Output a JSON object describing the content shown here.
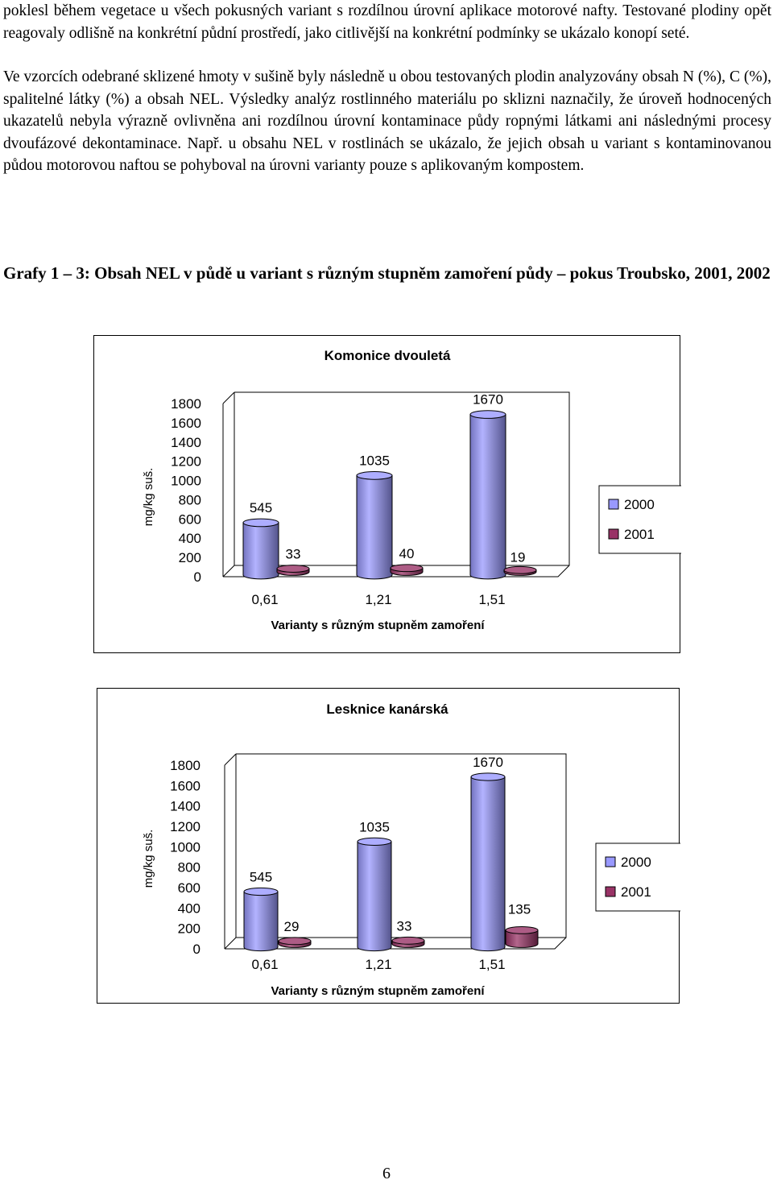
{
  "paragraphs": [
    "poklesl během vegetace u všech  pokusných variant s rozdílnou úrovní aplikace motorové nafty. Testované plodiny  opět reagovaly odlišně na konkrétní půdní prostředí, jako citlivější na konkrétní podmínky se ukázalo konopí seté.",
    "Ve vzorcích odebrané sklizené hmoty v sušině byly následně  u obou  testovaných plodin analyzovány  obsah N (%), C (%), spalitelné látky (%) a  obsah NEL. Výsledky analýz rostlinného materiálu po sklizni naznačily, že úroveň hodnocených  ukazatelů  nebyla výrazně ovlivněna ani rozdílnou úrovní kontaminace půdy ropnými látkami ani následnými procesy dvoufázové dekontaminace. Např. u  obsahu NEL v rostlinách se ukázalo, že jejich obsah u  variant s kontaminovanou půdou motorovou naftou se pohyboval na úrovni varianty pouze  s aplikovaným kompostem."
  ],
  "heading": "Grafy 1 – 3: Obsah NEL v půdě u variant s různým stupněm zamoření půdy – pokus Troubsko, 2001, 2002",
  "page_number": "6",
  "colors": {
    "series_2000": "#9999ff",
    "series_2001": "#993366"
  },
  "chart_data": [
    {
      "type": "bar",
      "title": "Komonice dvouletá",
      "xlabel": "Varianty s různým stupněm zamoření",
      "ylabel": "mg/kg suš.",
      "ylim": [
        0,
        1800
      ],
      "yticks": [
        "0",
        "200",
        "400",
        "600",
        "800",
        "1000",
        "1200",
        "1400",
        "1600",
        "1800"
      ],
      "categories": [
        "0,61",
        "1,21",
        "1,51"
      ],
      "series": [
        {
          "name": "2000",
          "values": [
            545,
            1035,
            1670
          ]
        },
        {
          "name": "2001",
          "values": [
            33,
            40,
            19
          ]
        }
      ],
      "legend": "right",
      "grid": false
    },
    {
      "type": "bar",
      "title": "Lesknice kanárská",
      "xlabel": "Varianty s různým stupněm zamoření",
      "ylabel": "mg/kg suš.",
      "ylim": [
        0,
        1800
      ],
      "yticks": [
        "0",
        "200",
        "400",
        "600",
        "800",
        "1000",
        "1200",
        "1400",
        "1600",
        "1800"
      ],
      "categories": [
        "0,61",
        "1,21",
        "1,51"
      ],
      "series": [
        {
          "name": "2000",
          "values": [
            545,
            1035,
            1670
          ]
        },
        {
          "name": "2001",
          "values": [
            29,
            33,
            135
          ]
        }
      ],
      "legend": "right",
      "grid": false
    }
  ]
}
